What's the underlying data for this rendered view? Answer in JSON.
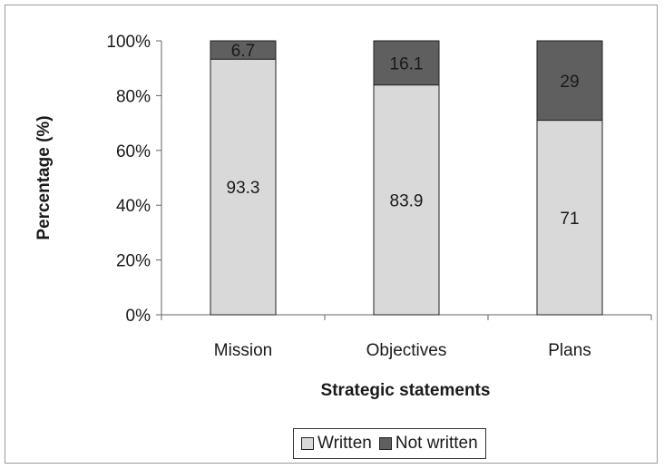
{
  "chart_data": {
    "type": "bar",
    "stacked": true,
    "percent": true,
    "categories": [
      "Mission",
      "Objectives",
      "Plans"
    ],
    "series": [
      {
        "name": "Written",
        "values": [
          93.3,
          83.9,
          71
        ],
        "labels": [
          "93.3",
          "83.9",
          "71"
        ],
        "color": "#d9d9d9"
      },
      {
        "name": "Not written",
        "values": [
          6.7,
          16.1,
          29
        ],
        "labels": [
          "6.7",
          "16.1",
          "29"
        ],
        "color": "#5f5f5f"
      }
    ],
    "xlabel": "Strategic statements",
    "ylabel": "Percentage (%)",
    "ylim": [
      0,
      100
    ],
    "yticks": [
      "0%",
      "20%",
      "40%",
      "60%",
      "80%",
      "100%"
    ],
    "grid": false,
    "legend_position": "bottom"
  }
}
